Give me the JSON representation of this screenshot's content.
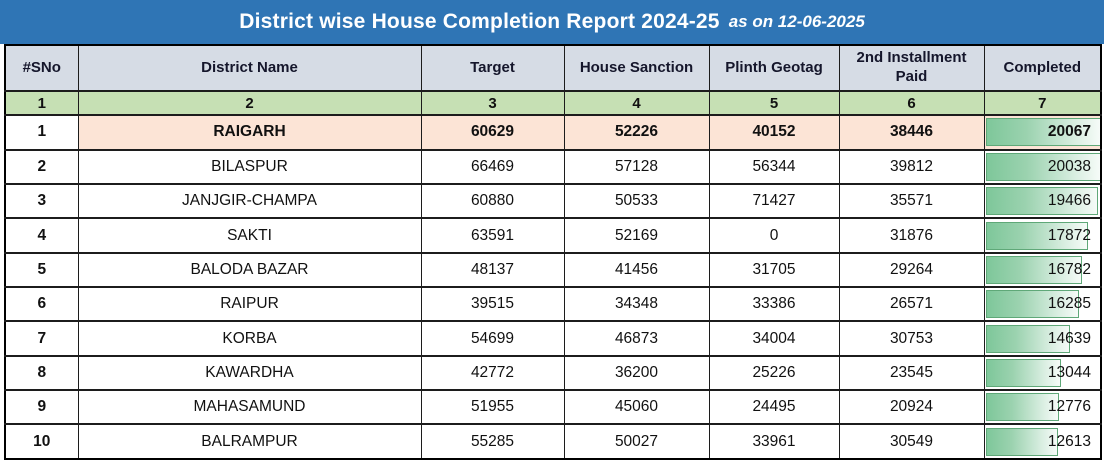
{
  "title": {
    "main": "District wise House Completion Report 2024-25",
    "suffix": "as on 12-06-2025"
  },
  "colors": {
    "title_bar": "#2F75B5",
    "header_bg": "#D6DCE5",
    "index_row_bg": "#C6E0B4",
    "highlight_row_bg": "#FCE4D6",
    "databar_green": "#7EC79A",
    "databar_border": "#5FA878",
    "grid_border": "#1C1C1C"
  },
  "chart_data": {
    "type": "table",
    "title": "District wise House Completion Report 2024-25",
    "as_on": "12-06-2025",
    "columns": [
      "#SNo",
      "District Name",
      "Target",
      "House Sanction",
      "Plinth Geotag",
      "2nd Installment Paid",
      "Completed"
    ],
    "column_index_labels": [
      "1",
      "2",
      "3",
      "4",
      "5",
      "6",
      "7"
    ],
    "completed_databar_max": 20067,
    "rows": [
      {
        "sno": "1",
        "district": "RAIGARH",
        "target": 60629,
        "house_sanction": 52226,
        "plinth_geotag": 40152,
        "second_installment_paid": 38446,
        "completed": 20067,
        "highlighted": true
      },
      {
        "sno": "2",
        "district": "BILASPUR",
        "target": 66469,
        "house_sanction": 57128,
        "plinth_geotag": 56344,
        "second_installment_paid": 39812,
        "completed": 20038,
        "highlighted": false
      },
      {
        "sno": "3",
        "district": "JANJGIR-CHAMPA",
        "target": 60880,
        "house_sanction": 50533,
        "plinth_geotag": 71427,
        "second_installment_paid": 35571,
        "completed": 19466,
        "highlighted": false
      },
      {
        "sno": "4",
        "district": "SAKTI",
        "target": 63591,
        "house_sanction": 52169,
        "plinth_geotag": 0,
        "second_installment_paid": 31876,
        "completed": 17872,
        "highlighted": false
      },
      {
        "sno": "5",
        "district": "BALODA BAZAR",
        "target": 48137,
        "house_sanction": 41456,
        "plinth_geotag": 31705,
        "second_installment_paid": 29264,
        "completed": 16782,
        "highlighted": false
      },
      {
        "sno": "6",
        "district": "RAIPUR",
        "target": 39515,
        "house_sanction": 34348,
        "plinth_geotag": 33386,
        "second_installment_paid": 26571,
        "completed": 16285,
        "highlighted": false
      },
      {
        "sno": "7",
        "district": "KORBA",
        "target": 54699,
        "house_sanction": 46873,
        "plinth_geotag": 34004,
        "second_installment_paid": 30753,
        "completed": 14639,
        "highlighted": false
      },
      {
        "sno": "8",
        "district": "KAWARDHA",
        "target": 42772,
        "house_sanction": 36200,
        "plinth_geotag": 25226,
        "second_installment_paid": 23545,
        "completed": 13044,
        "highlighted": false
      },
      {
        "sno": "9",
        "district": "MAHASAMUND",
        "target": 51955,
        "house_sanction": 45060,
        "plinth_geotag": 24495,
        "second_installment_paid": 20924,
        "completed": 12776,
        "highlighted": false
      },
      {
        "sno": "10",
        "district": "BALRAMPUR",
        "target": 55285,
        "house_sanction": 50027,
        "plinth_geotag": 33961,
        "second_installment_paid": 30549,
        "completed": 12613,
        "highlighted": false
      }
    ]
  }
}
